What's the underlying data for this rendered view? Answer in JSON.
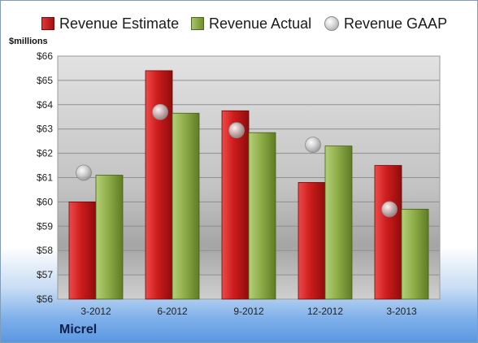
{
  "colors": {
    "estimate": "#c0191a",
    "actual": "#8aab45",
    "gaap": "#bdbdbd"
  },
  "legend": [
    {
      "label": "Revenue Estimate",
      "icon": "red-bar-swatch"
    },
    {
      "label": "Revenue Actual",
      "icon": "green-bar-swatch"
    },
    {
      "label": "Revenue GAAP",
      "icon": "gray-bubble-swatch"
    }
  ],
  "unit_label": "$millions",
  "company": "Micrel",
  "chart_data": {
    "type": "bar",
    "categories": [
      "3-2012",
      "6-2012",
      "9-2012",
      "12-2012",
      "3-2013"
    ],
    "series": [
      {
        "name": "Revenue Estimate",
        "values": [
          60.0,
          65.4,
          63.75,
          60.8,
          61.5
        ]
      },
      {
        "name": "Revenue Actual",
        "values": [
          61.1,
          63.65,
          62.85,
          62.3,
          59.7
        ]
      },
      {
        "name": "Revenue GAAP",
        "values": [
          61.2,
          63.7,
          62.95,
          62.35,
          59.7
        ],
        "marker": "bubble"
      }
    ],
    "ylim": [
      56,
      66
    ],
    "yticks": [
      "$56",
      "$57",
      "$58",
      "$59",
      "$60",
      "$61",
      "$62",
      "$63",
      "$64",
      "$65",
      "$66"
    ],
    "ylabel": "$millions",
    "grid": true,
    "legend_position": "top"
  }
}
